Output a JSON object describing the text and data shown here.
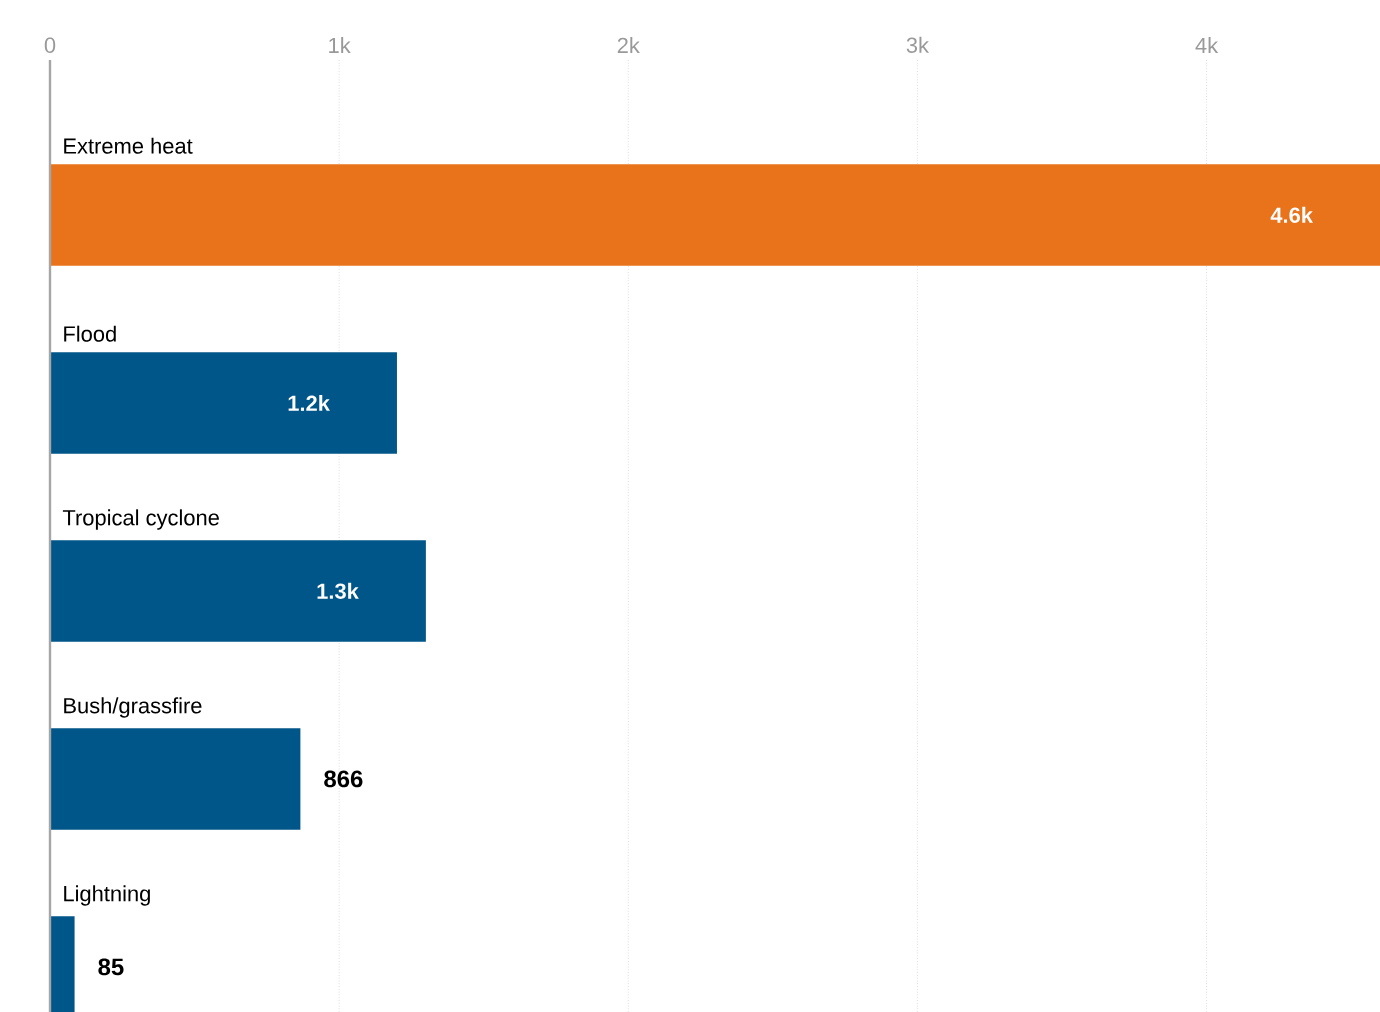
{
  "chart_data": {
    "type": "bar",
    "orientation": "horizontal",
    "categories": [
      "Extreme heat",
      "Flood",
      "Tropical cyclone",
      "Bush/grassfire",
      "Lightning"
    ],
    "values": [
      4600,
      1200,
      1300,
      866,
      85
    ],
    "value_labels": [
      "4.6k",
      "1.2k",
      "1.3k",
      "866",
      "85"
    ],
    "colors": [
      "#e8731a",
      "#005689",
      "#005689",
      "#005689",
      "#005689"
    ],
    "xlim": [
      0,
      4600
    ],
    "xticks": [
      0,
      {
        "value": 1000,
        "label": "1k"
      },
      {
        "value": 2000,
        "label": "2k"
      },
      {
        "value": 3000,
        "label": "3k"
      },
      {
        "value": 4000,
        "label": "4k"
      }
    ],
    "grid": "x"
  }
}
